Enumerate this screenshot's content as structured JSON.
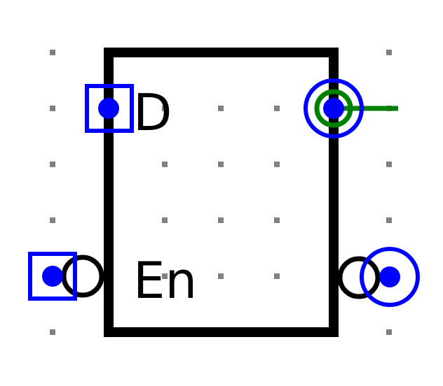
{
  "component": {
    "type": "d-latch",
    "pins": {
      "d_label": "D",
      "enable_label": "En"
    }
  },
  "colors": {
    "grid_dot": "#808080",
    "body_stroke": "#000000",
    "pin_marker": "#0000ff",
    "selection_box": "#0000ff",
    "connected_ring": "#008000",
    "connected_wire": "#008000",
    "inversion_bubble": "#000000"
  },
  "icons": {
    "input_d": "square-pin-icon",
    "input_enable": "square-pin-icon",
    "output_q": "circle-pin-icon",
    "output_q_inverted": "circle-pin-icon",
    "negation": "inversion-bubble-icon"
  }
}
